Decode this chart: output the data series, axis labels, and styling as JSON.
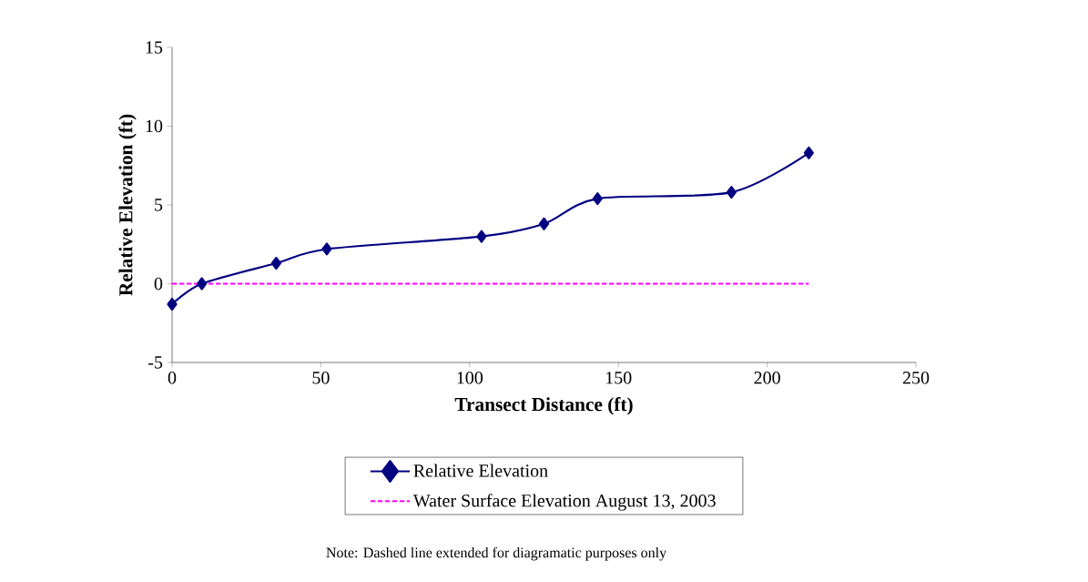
{
  "chart_data": {
    "type": "line",
    "xlabel": "Transect Distance (ft)",
    "ylabel": "Relative Elevation (ft)",
    "xlim": [
      0,
      250
    ],
    "xticks": [
      0,
      50,
      100,
      150,
      200,
      250
    ],
    "ylim": [
      -5,
      15
    ],
    "yticks": [
      -5,
      0,
      5,
      10,
      15
    ],
    "grid": false,
    "legend": "bottom",
    "series": [
      {
        "name": "Relative Elevation",
        "color": "#000080",
        "marker": "diamond",
        "line_style": "solid",
        "x": [
          0,
          10,
          35,
          52,
          104,
          125,
          143,
          188,
          214
        ],
        "values": [
          -1.3,
          0,
          1.3,
          2.2,
          3.0,
          3.8,
          5.4,
          5.8,
          8.3
        ]
      },
      {
        "name": "Water Surface Elevation August 13, 2003",
        "color": "#ff00ff",
        "marker": "none",
        "line_style": "dashed",
        "x": [
          0,
          214
        ],
        "values": [
          0,
          0
        ]
      }
    ],
    "annotations": [
      "Note: Dashed line extended for diagramatic purposes only"
    ]
  }
}
